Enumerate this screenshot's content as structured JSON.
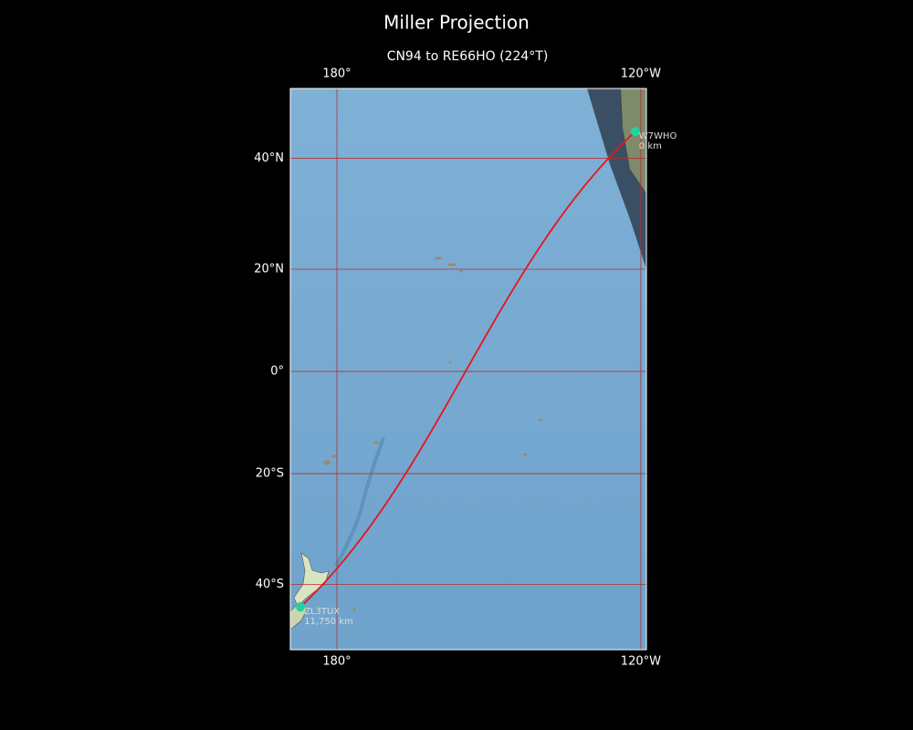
{
  "map": {
    "title": "Miller Projection",
    "subtitle": "CN94 to RE66HO (224°T)",
    "projection": "miller",
    "xlim": [
      170.8,
      -118.9
    ],
    "ylim": [
      -50.4,
      51.1
    ],
    "xticks": [
      {
        "value": 180,
        "label": "180°"
      },
      {
        "value": -120,
        "label": "120°W"
      }
    ],
    "yticks": [
      {
        "value": 40,
        "label": "40°N"
      },
      {
        "value": 20,
        "label": "20°N"
      },
      {
        "value": 0,
        "label": "0°"
      },
      {
        "value": -20,
        "label": "20°S"
      },
      {
        "value": -40,
        "label": "40°S"
      }
    ],
    "grid": true,
    "grid_color": "#b03030",
    "route_color": "#e8141c",
    "station_color": "#1fd3a0",
    "stations": [
      {
        "name": "W7WHO",
        "distance_label": "0 km",
        "lon": -121.1,
        "lat": 44.4
      },
      {
        "name": "ZL3TUX",
        "distance_label": "11,750 km",
        "lon": 172.8,
        "lat": -43.7
      }
    ]
  }
}
